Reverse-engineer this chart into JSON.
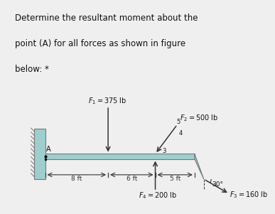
{
  "title_line1": "Determine the resultant moment about the",
  "title_line2": "point (A) for all forces as shown in figure",
  "title_line3": "below: *",
  "bg_color": "#efefef",
  "beam_color": "#9dcfcf",
  "beam_outline": "#777777",
  "wall_color": "#9dcfcf",
  "wall_hatch_color": "#666666",
  "arrow_color": "#333333",
  "text_color": "#111111",
  "F1_label": "$F_1 = 375$ lb",
  "F2_label": "$F_2 = 500$ lb",
  "F4_label": "$F_4 = 200$ lb",
  "F3_label": "$F_3 = 160$ lb",
  "dim_8ft": "8 ft",
  "dim_6ft": "6 ft",
  "dim_5ft": "5 ft",
  "angle_label": "30°",
  "A_label": "A",
  "ratio_5": "5",
  "ratio_4": "4",
  "ratio_3": "3",
  "title_fontsize": 8.5,
  "label_fontsize": 7.0,
  "dim_fontsize": 6.5
}
